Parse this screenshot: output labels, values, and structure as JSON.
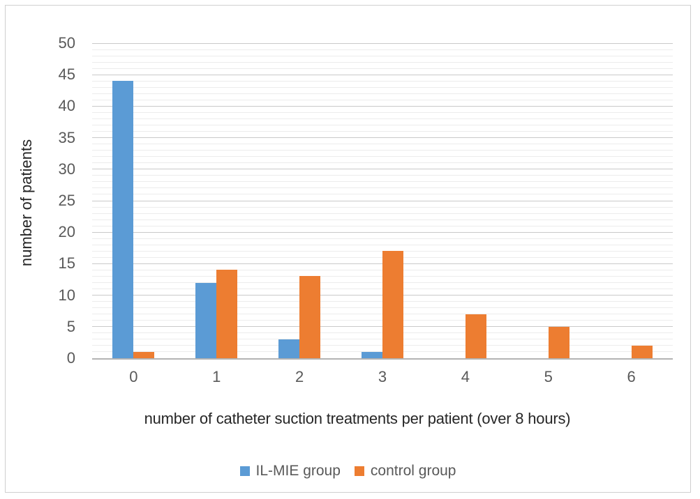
{
  "figure": {
    "background": "#ffffff",
    "border_color": "#cfcfcf"
  },
  "chart_data": {
    "type": "bar",
    "title": "",
    "xlabel": "number of catheter suction treatments per patient (over 8 hours)",
    "ylabel": "number of patients",
    "categories": [
      "0",
      "1",
      "2",
      "3",
      "4",
      "5",
      "6"
    ],
    "series": [
      {
        "name": "IL-MIE group",
        "color": "#5B9BD5",
        "values": [
          44,
          12,
          3,
          1,
          0,
          0,
          0
        ]
      },
      {
        "name": "control group",
        "color": "#ED7D31",
        "values": [
          1,
          14,
          13,
          17,
          7,
          5,
          2
        ]
      }
    ],
    "ylim": [
      0,
      50
    ],
    "ytick_step": 5,
    "yticks": [
      0,
      5,
      10,
      15,
      20,
      25,
      30,
      35,
      40,
      45,
      50
    ],
    "minor_gridline_step": 1,
    "grid": "horizontal",
    "legend_position": "bottom",
    "colors": {
      "tick_label": "#595959",
      "axis_title": "#262626",
      "major_gridline": "#c9c9c9",
      "minor_gridline": "#ececec",
      "axis_line": "#b3b3b3"
    }
  }
}
